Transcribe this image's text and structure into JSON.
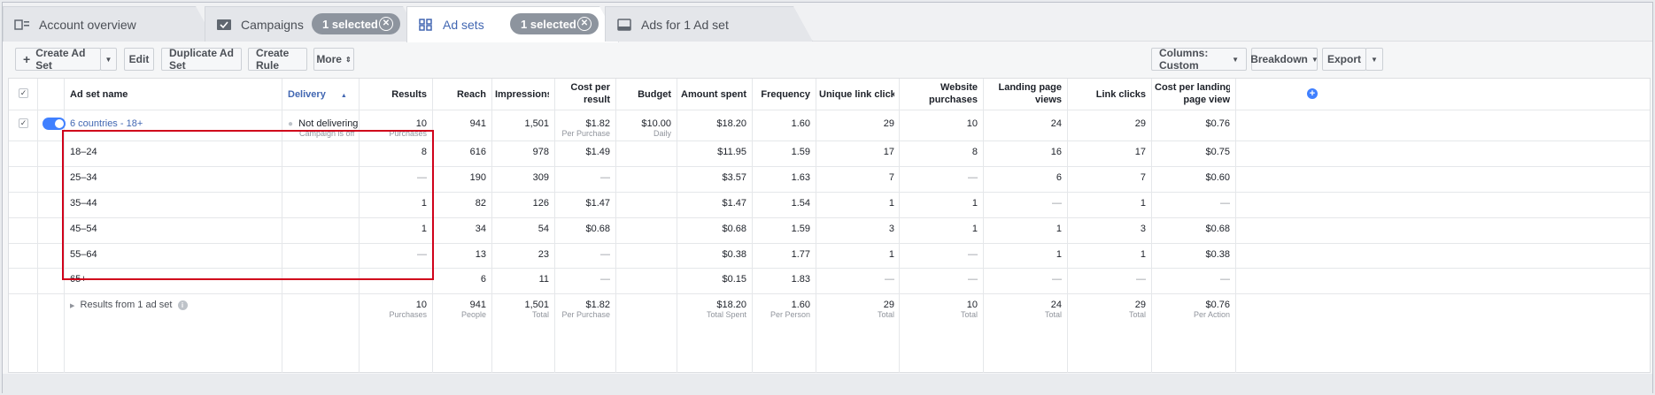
{
  "tabs": [
    {
      "label": "Account overview",
      "icon": "account-overview-icon"
    },
    {
      "label": "Campaigns",
      "icon": "folder-check-icon",
      "pill": "1 selected"
    },
    {
      "label": "Ad sets",
      "icon": "grid-icon",
      "pill": "1 selected"
    },
    {
      "label": "Ads for 1 Ad set",
      "icon": "ad-icon"
    }
  ],
  "toolbar": {
    "create": "Create Ad Set",
    "edit": "Edit",
    "duplicate": "Duplicate Ad Set",
    "create_rule": "Create Rule",
    "more": "More",
    "columns": "Columns: Custom",
    "breakdown": "Breakdown",
    "export": "Export"
  },
  "headers": {
    "name": "Ad set name",
    "delivery": "Delivery",
    "results": "Results",
    "reach": "Reach",
    "impressions": "Impressions",
    "cpr_1": "Cost per",
    "cpr_2": "result",
    "budget": "Budget",
    "amount_spent": "Amount spent",
    "frequency": "Frequency",
    "unique_link_clicks": "Unique link clicks",
    "wp_1": "Website",
    "wp_2": "purchases",
    "lpv_1": "Landing page",
    "lpv_2": "views",
    "link_clicks": "Link clicks",
    "cplpv_1": "Cost per landing",
    "cplpv_2": "page view"
  },
  "adset": {
    "name": "6 countries - 18+",
    "delivery": "Not delivering",
    "delivery_sub": "Campaign is off",
    "results": "10",
    "results_sub": "Purchases",
    "reach": "941",
    "impressions": "1,501",
    "cpr": "$1.82",
    "cpr_sub": "Per Purchase",
    "budget": "$10.00",
    "budget_sub": "Daily",
    "amount_spent": "$18.20",
    "frequency": "1.60",
    "unique_link_clicks": "29",
    "website_purchases": "10",
    "landing_page_views": "24",
    "link_clicks": "29",
    "cplpv": "$0.76"
  },
  "rows": [
    {
      "age": "18–24",
      "results": "8",
      "reach": "616",
      "impressions": "978",
      "cpr": "$1.49",
      "amount_spent": "$11.95",
      "frequency": "1.59",
      "unique_link_clicks": "17",
      "website_purchases": "8",
      "landing_page_views": "16",
      "link_clicks": "17",
      "cplpv": "$0.75"
    },
    {
      "age": "25–34",
      "results": "—",
      "reach": "190",
      "impressions": "309",
      "cpr": "—",
      "amount_spent": "$3.57",
      "frequency": "1.63",
      "unique_link_clicks": "7",
      "website_purchases": "—",
      "landing_page_views": "6",
      "link_clicks": "7",
      "cplpv": "$0.60"
    },
    {
      "age": "35–44",
      "results": "1",
      "reach": "82",
      "impressions": "126",
      "cpr": "$1.47",
      "amount_spent": "$1.47",
      "frequency": "1.54",
      "unique_link_clicks": "1",
      "website_purchases": "1",
      "landing_page_views": "—",
      "link_clicks": "1",
      "cplpv": "—"
    },
    {
      "age": "45–54",
      "results": "1",
      "reach": "34",
      "impressions": "54",
      "cpr": "$0.68",
      "amount_spent": "$0.68",
      "frequency": "1.59",
      "unique_link_clicks": "3",
      "website_purchases": "1",
      "landing_page_views": "1",
      "link_clicks": "3",
      "cplpv": "$0.68"
    },
    {
      "age": "55–64",
      "results": "—",
      "reach": "13",
      "impressions": "23",
      "cpr": "—",
      "amount_spent": "$0.38",
      "frequency": "1.77",
      "unique_link_clicks": "1",
      "website_purchases": "—",
      "landing_page_views": "1",
      "link_clicks": "1",
      "cplpv": "$0.38"
    },
    {
      "age": "65+",
      "results": "—",
      "reach": "6",
      "impressions": "11",
      "cpr": "—",
      "amount_spent": "$0.15",
      "frequency": "1.83",
      "unique_link_clicks": "—",
      "website_purchases": "—",
      "landing_page_views": "—",
      "link_clicks": "—",
      "cplpv": "—"
    }
  ],
  "totals": {
    "label": "Results from 1 ad set",
    "results": "10",
    "results_sub": "Purchases",
    "reach": "941",
    "reach_sub": "People",
    "impressions": "1,501",
    "impressions_sub": "Total",
    "cpr": "$1.82",
    "cpr_sub": "Per Purchase",
    "amount_spent": "$18.20",
    "amount_spent_sub": "Total Spent",
    "frequency": "1.60",
    "frequency_sub": "Per Person",
    "unique_link_clicks": "29",
    "unique_link_clicks_sub": "Total",
    "website_purchases": "10",
    "website_purchases_sub": "Total",
    "landing_page_views": "24",
    "landing_page_views_sub": "Total",
    "link_clicks": "29",
    "link_clicks_sub": "Total",
    "cplpv": "$0.76",
    "cplpv_sub": "Per Action"
  },
  "colors": {
    "accent": "#4267b2",
    "toggle": "#4080ff",
    "highlight_box": "#d0021b"
  }
}
